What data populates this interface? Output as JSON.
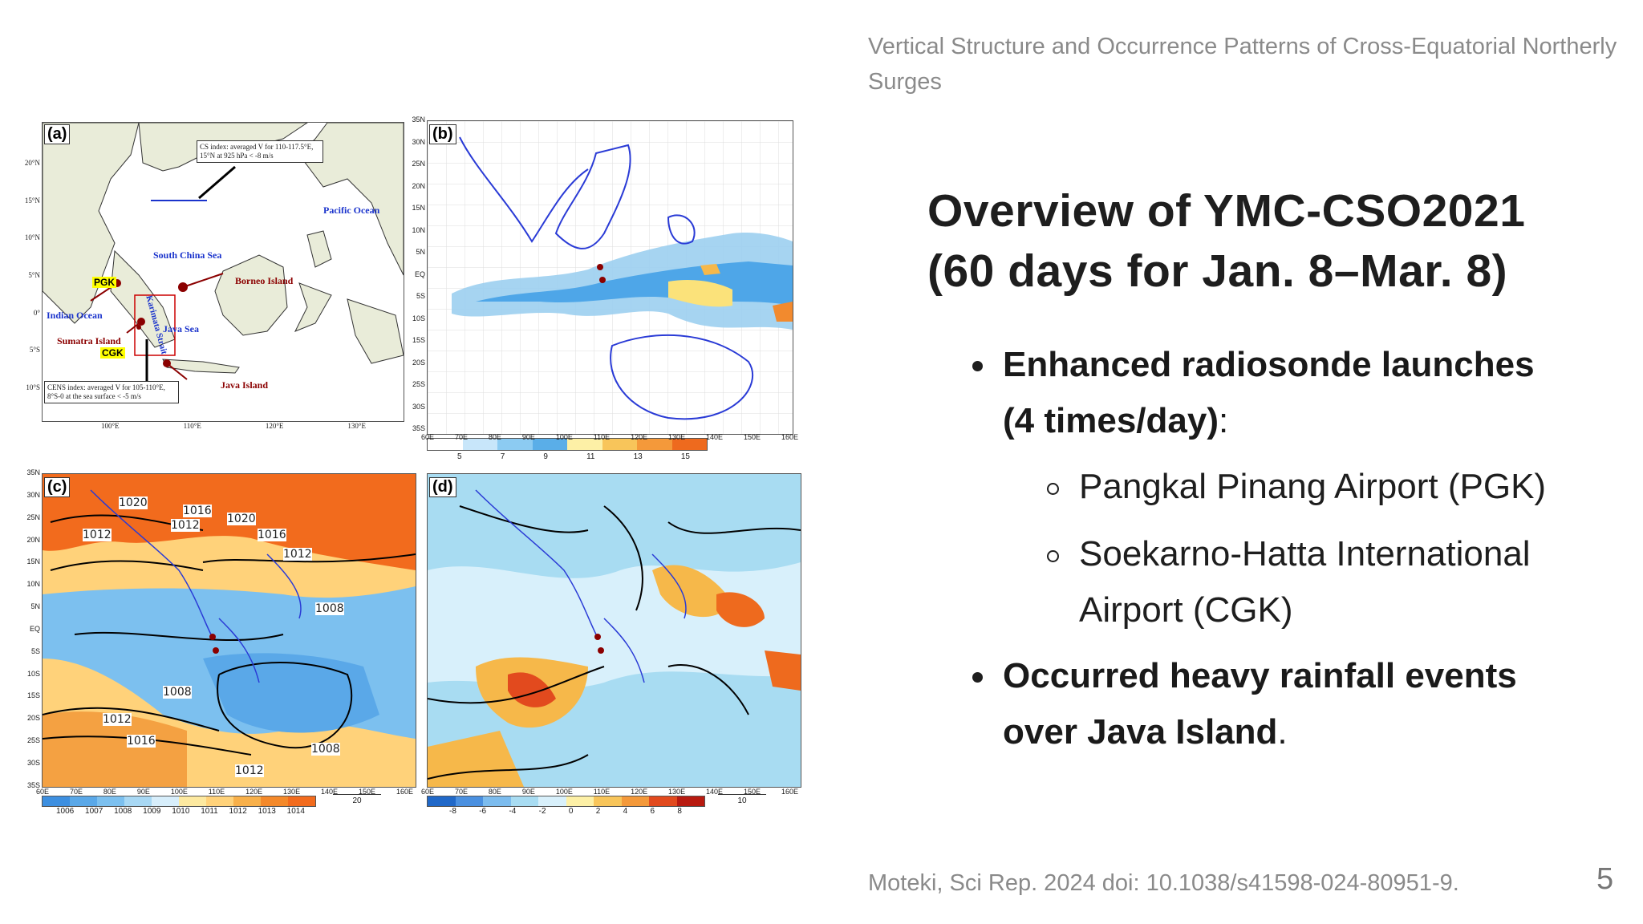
{
  "header": {
    "title": "Vertical Structure and Occurrence Patterns of Cross-Equatorial Northerly Surges"
  },
  "heading": {
    "line1": "Overview of YMC-CSO2021",
    "line2": "(60 days for Jan. 8–Mar. 8)"
  },
  "bullets": [
    {
      "bold": "Enhanced radiosonde launches",
      "bold2": "(4 times/day)",
      "suffix": ":"
    },
    {
      "text": "Pangkal Pinang Airport (PGK)"
    },
    {
      "text": "Soekarno-Hatta International",
      "text2": "Airport (CGK)"
    },
    {
      "bold": "Occurred heavy rainfall events",
      "bold2": "over Java Island",
      "suffix": "."
    }
  ],
  "footer": {
    "citation": "Moteki, Sci Rep. 2024 doi: 10.1038/s41598-024-80951-9.",
    "page": "5"
  },
  "figure": {
    "panel_a": {
      "label": "(a)",
      "cs_index": "CS index: averaged V for 110-117.5°E, 15°N at 925 hPa < -8 m/s",
      "cens_index": "CENS index: averaged V for 105-110°E, 8°S-0 at the sea surface < -5 m/s",
      "pacific": "Pacific Ocean",
      "scs": "South China Sea",
      "borneo": "Borneo Island",
      "indian": "Indian Ocean",
      "sumatra": "Sumatra Island",
      "java_sea": "Java Sea",
      "java_island": "Java Island",
      "karimata": "Karimata Strait",
      "pgk": "PGK",
      "cgk": "CGK",
      "lat_ticks": [
        "20°N",
        "15°N",
        "10°N",
        "5°N",
        "0°",
        "5°S",
        "10°S"
      ],
      "lon_ticks": [
        "100°E",
        "110°E",
        "120°E",
        "130°E"
      ]
    },
    "panel_b": {
      "label": "(b)",
      "colorbar": [
        "5",
        "7",
        "9",
        "11",
        "13",
        "15"
      ]
    },
    "panel_c": {
      "label": "(c)",
      "isobars": [
        "1020",
        "1016",
        "1012",
        "1020",
        "1016",
        "1012",
        "1012",
        "1008",
        "1008",
        "1012",
        "1016",
        "1008",
        "1012"
      ],
      "colorbar": [
        "1006",
        "1007",
        "1008",
        "1009",
        "1010",
        "1011",
        "1012",
        "1013",
        "1014"
      ],
      "vector_ref": "20"
    },
    "panel_d": {
      "label": "(d)",
      "colorbar": [
        "-8",
        "-6",
        "-4",
        "-2",
        "0",
        "2",
        "4",
        "6",
        "8"
      ],
      "vector_ref": "10"
    },
    "lat_ticks": [
      "35N",
      "30N",
      "25N",
      "20N",
      "15N",
      "10N",
      "5N",
      "EQ",
      "5S",
      "10S",
      "15S",
      "20S",
      "25S",
      "30S",
      "35S"
    ],
    "lon_ticks": [
      "60E",
      "70E",
      "80E",
      "90E",
      "100E",
      "110E",
      "120E",
      "130E",
      "140E",
      "150E",
      "160E"
    ]
  }
}
